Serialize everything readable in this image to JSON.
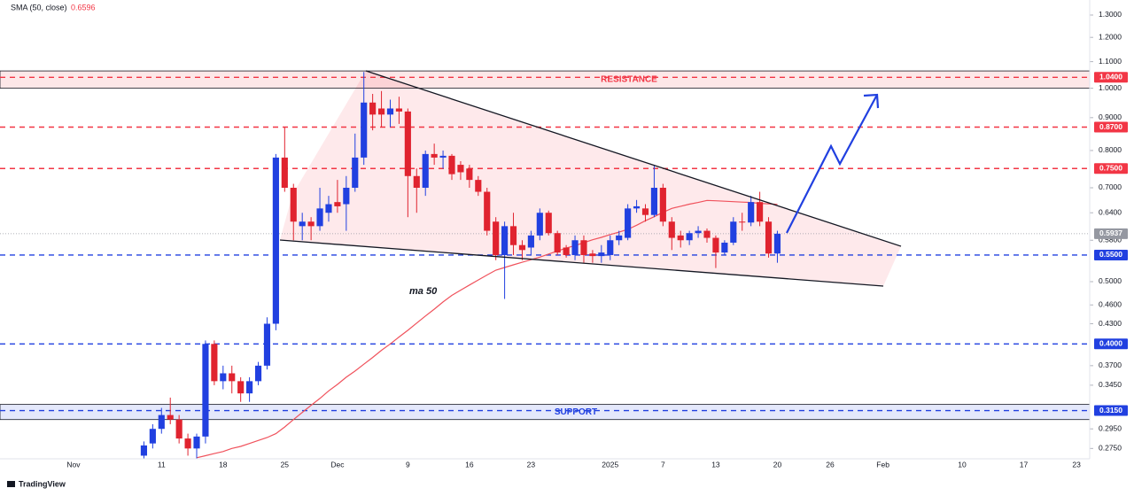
{
  "chart_data": {
    "type": "candlestick",
    "log_scale": true,
    "ylim": [
      0.265,
      1.372
    ],
    "yticks": [
      {
        "value": 1.3,
        "label": "1.3000"
      },
      {
        "value": 1.2,
        "label": "1.2000"
      },
      {
        "value": 1.1,
        "label": "1.1000"
      },
      {
        "value": 1.0,
        "label": "1.0000"
      },
      {
        "value": 0.9,
        "label": "0.9000"
      },
      {
        "value": 0.8,
        "label": "0.8000"
      },
      {
        "value": 0.7,
        "label": "0.7000"
      },
      {
        "value": 0.64,
        "label": "0.6400"
      },
      {
        "value": 0.58,
        "label": "0.5800"
      },
      {
        "value": 0.5,
        "label": "0.5000"
      },
      {
        "value": 0.46,
        "label": "0.4600"
      },
      {
        "value": 0.43,
        "label": "0.4300"
      },
      {
        "value": 0.37,
        "label": "0.3700"
      },
      {
        "value": 0.345,
        "label": "0.3450"
      },
      {
        "value": 0.295,
        "label": "0.2950"
      },
      {
        "value": 0.275,
        "label": "0.2750"
      }
    ],
    "categories": [
      null,
      null,
      null,
      null,
      null,
      null,
      null,
      "Nov",
      null,
      null,
      null,
      null,
      null,
      null,
      null,
      null,
      null,
      "11",
      null,
      null,
      null,
      null,
      null,
      null,
      "18",
      null,
      null,
      null,
      null,
      null,
      null,
      "25",
      null,
      null,
      null,
      null,
      null,
      "Dec",
      null,
      null,
      null,
      null,
      null,
      null,
      null,
      "9",
      null,
      null,
      null,
      null,
      null,
      null,
      "16",
      null,
      null,
      null,
      null,
      null,
      null,
      "23",
      null,
      null,
      null,
      null,
      null,
      null,
      null,
      null,
      "2025",
      null,
      null,
      null,
      null,
      null,
      "7",
      null,
      null,
      null,
      null,
      null,
      "13",
      null,
      null,
      null,
      null,
      null,
      null,
      "20",
      null,
      null,
      null,
      null,
      null,
      "26",
      null,
      null,
      null,
      null,
      null,
      "Feb",
      null,
      null,
      null,
      null,
      null,
      null,
      null,
      null,
      "10",
      null,
      null,
      null,
      null,
      null,
      null,
      "17",
      null,
      null,
      null,
      null,
      null,
      "23",
      null
    ],
    "up_color": "#2140e0",
    "down_color": "#e0232f",
    "candles": {
      "open": [
        null,
        null,
        null,
        null,
        null,
        null,
        null,
        null,
        null,
        null,
        null,
        null,
        null,
        null,
        null,
        0.268,
        0.28,
        0.295,
        0.31,
        0.305,
        0.285,
        0.275,
        0.287,
        0.4,
        0.35,
        0.36,
        0.35,
        0.335,
        0.35,
        0.37,
        0.43,
        0.78,
        0.7,
        0.61,
        0.62,
        0.61,
        0.64,
        0.665,
        0.66,
        0.7,
        0.78,
        0.95,
        0.93,
        0.91,
        0.93,
        0.92,
        0.73,
        0.7,
        0.79,
        0.78,
        0.785,
        0.76,
        0.75,
        0.72,
        0.69,
        0.62,
        0.55,
        0.61,
        0.57,
        0.565,
        0.59,
        0.64,
        0.595,
        0.565,
        0.55,
        0.58,
        0.553,
        0.548,
        0.55,
        0.58,
        0.585,
        0.65,
        0.65,
        0.635,
        0.7,
        0.62,
        0.59,
        0.58,
        0.595,
        0.6,
        0.585,
        0.555,
        0.575,
        0.62,
        0.618,
        0.665,
        0.62,
        0.553,
        null,
        null,
        null,
        null,
        null,
        null,
        null,
        null,
        null,
        null,
        null,
        null,
        null,
        null,
        null,
        null,
        null,
        null,
        null,
        null,
        null,
        null,
        null,
        null,
        null,
        null,
        null,
        null,
        null,
        null,
        null
      ],
      "high": [
        null,
        null,
        null,
        null,
        null,
        null,
        null,
        null,
        null,
        null,
        null,
        null,
        null,
        null,
        null,
        0.282,
        0.3,
        0.318,
        0.33,
        0.31,
        0.29,
        0.29,
        0.405,
        0.405,
        0.37,
        0.37,
        0.355,
        0.355,
        0.375,
        0.44,
        0.79,
        0.87,
        0.71,
        0.64,
        0.63,
        0.7,
        0.68,
        0.72,
        0.73,
        0.85,
        1.06,
        0.98,
        0.99,
        0.96,
        0.97,
        0.93,
        0.75,
        0.8,
        0.82,
        0.8,
        0.79,
        0.77,
        0.76,
        0.73,
        0.7,
        0.63,
        0.62,
        0.64,
        0.58,
        0.6,
        0.65,
        0.645,
        0.6,
        0.57,
        0.59,
        0.59,
        0.56,
        0.57,
        0.59,
        0.6,
        0.66,
        0.67,
        0.66,
        0.76,
        0.71,
        0.63,
        0.6,
        0.6,
        0.61,
        0.605,
        0.59,
        0.58,
        0.63,
        0.64,
        0.68,
        0.69,
        0.63,
        0.6,
        null,
        null,
        null,
        null,
        null,
        null,
        null,
        null,
        null,
        null,
        null,
        null,
        null,
        null,
        null,
        null,
        null,
        null,
        null,
        null,
        null,
        null,
        null,
        null,
        null,
        null,
        null,
        null,
        null,
        null,
        null
      ],
      "low": [
        null,
        null,
        null,
        null,
        null,
        null,
        null,
        null,
        null,
        null,
        null,
        null,
        null,
        null,
        null,
        0.265,
        0.275,
        0.29,
        0.3,
        0.28,
        0.268,
        0.265,
        0.28,
        0.345,
        0.34,
        0.335,
        0.325,
        0.325,
        0.345,
        0.365,
        0.42,
        0.69,
        0.58,
        0.58,
        0.58,
        0.6,
        0.62,
        0.64,
        0.6,
        0.69,
        0.76,
        0.86,
        0.87,
        0.87,
        0.88,
        0.63,
        0.64,
        0.68,
        0.76,
        0.75,
        0.72,
        0.72,
        0.7,
        0.68,
        0.59,
        0.54,
        0.47,
        0.55,
        0.54,
        0.55,
        0.58,
        0.59,
        0.55,
        0.545,
        0.54,
        0.535,
        0.535,
        0.535,
        0.54,
        0.57,
        0.58,
        0.64,
        0.62,
        0.63,
        0.61,
        0.56,
        0.565,
        0.57,
        0.585,
        0.575,
        0.525,
        0.55,
        0.57,
        0.6,
        0.61,
        0.61,
        0.545,
        0.535,
        null,
        null,
        null,
        null,
        null,
        null,
        null,
        null,
        null,
        null,
        null,
        null,
        null,
        null,
        null,
        null,
        null,
        null,
        null,
        null,
        null,
        null,
        null,
        null,
        null,
        null,
        null,
        null,
        null,
        null,
        null
      ],
      "close": [
        null,
        null,
        null,
        null,
        null,
        null,
        null,
        null,
        null,
        null,
        null,
        null,
        null,
        null,
        null,
        0.278,
        0.295,
        0.31,
        0.305,
        0.285,
        0.275,
        0.287,
        0.4,
        0.35,
        0.36,
        0.35,
        0.335,
        0.35,
        0.37,
        0.43,
        0.78,
        0.7,
        0.62,
        0.62,
        0.61,
        0.65,
        0.66,
        0.655,
        0.7,
        0.78,
        0.95,
        0.91,
        0.91,
        0.93,
        0.92,
        0.73,
        0.7,
        0.79,
        0.78,
        0.785,
        0.735,
        0.74,
        0.72,
        0.69,
        0.6,
        0.55,
        0.61,
        0.57,
        0.56,
        0.59,
        0.64,
        0.595,
        0.555,
        0.55,
        0.58,
        0.55,
        0.548,
        0.555,
        0.58,
        0.59,
        0.65,
        0.655,
        0.635,
        0.7,
        0.62,
        0.585,
        0.58,
        0.595,
        0.6,
        0.585,
        0.555,
        0.575,
        0.62,
        0.618,
        0.665,
        0.62,
        0.553,
        0.5937,
        null,
        null,
        null,
        null,
        null,
        null,
        null,
        null,
        null,
        null,
        null,
        null,
        null,
        null,
        null,
        null,
        null,
        null,
        null,
        null,
        null,
        null,
        null,
        null,
        null,
        null,
        null,
        null,
        null,
        null,
        null
      ]
    },
    "ma": {
      "name": "SMA (50, close)",
      "color": "#f0525c",
      "values": [
        null,
        null,
        null,
        null,
        null,
        null,
        null,
        null,
        null,
        null,
        null,
        null,
        null,
        null,
        null,
        null,
        null,
        null,
        null,
        null,
        null,
        0.266,
        0.268,
        0.27,
        0.272,
        0.275,
        0.277,
        0.28,
        0.283,
        0.286,
        0.29,
        0.297,
        0.305,
        0.313,
        0.321,
        0.329,
        0.338,
        0.346,
        0.355,
        0.363,
        0.372,
        0.381,
        0.391,
        0.4,
        0.41,
        0.42,
        0.431,
        0.442,
        0.453,
        0.465,
        0.476,
        0.485,
        0.494,
        0.503,
        0.512,
        0.521,
        0.526,
        0.531,
        0.536,
        0.541,
        0.546,
        0.552,
        0.558,
        0.564,
        0.569,
        0.575,
        0.581,
        0.586,
        0.592,
        0.597,
        0.603,
        0.612,
        0.622,
        0.631,
        0.641,
        0.65,
        0.655,
        0.66,
        0.664,
        0.669,
        0.668,
        0.667,
        0.666,
        0.665,
        0.664,
        0.662,
        0.661,
        0.6596,
        null,
        null,
        null,
        null,
        null,
        null,
        null,
        null,
        null,
        null,
        null,
        null,
        null,
        null,
        null,
        null,
        null,
        null,
        null,
        null,
        null,
        null,
        null,
        null,
        null,
        null,
        null,
        null,
        null,
        null,
        null
      ]
    },
    "levels": [
      {
        "value": 1.04,
        "label": "1.0400",
        "color": "#f23645"
      },
      {
        "value": 0.87,
        "label": "0.8700",
        "color": "#f23645"
      },
      {
        "value": 0.75,
        "label": "0.7500",
        "color": "#f23645"
      },
      {
        "value": 0.5937,
        "label": "0.5937",
        "color": "#9598a1"
      },
      {
        "value": 0.55,
        "label": "0.5500",
        "color": "#2140e0"
      },
      {
        "value": 0.4,
        "label": "0.4000",
        "color": "#2140e0"
      },
      {
        "value": 0.315,
        "label": "0.3150",
        "color": "#2140e0"
      }
    ],
    "zones": [
      {
        "label": "RESISTANCE",
        "range": [
          1.0,
          1.064
        ],
        "color": "#f23645"
      },
      {
        "label": "SUPPORT",
        "range": [
          0.305,
          0.322
        ],
        "color": "#2140e0"
      }
    ],
    "annotation": "ma 50",
    "watermark": "TradingView"
  }
}
